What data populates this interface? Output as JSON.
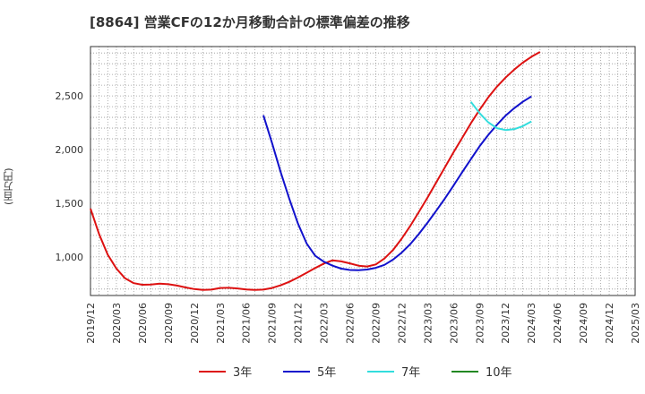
{
  "chart_data": {
    "type": "line",
    "title": "[8864]  営業CFの12か月移動合計の標準偏差の推移",
    "ylabel": "(百万円)",
    "xlabel": "",
    "x_ticks": [
      "2019/12",
      "2020/03",
      "2020/06",
      "2020/09",
      "2020/12",
      "2021/03",
      "2021/06",
      "2021/09",
      "2021/12",
      "2022/03",
      "2022/06",
      "2022/09",
      "2022/12",
      "2023/03",
      "2023/06",
      "2023/09",
      "2023/12",
      "2024/03",
      "2024/06",
      "2024/09",
      "2024/12",
      "2025/03"
    ],
    "y_ticks": [
      "1,000",
      "1,500",
      "2,000",
      "2,500"
    ],
    "y_tick_values": [
      1000,
      1500,
      2000,
      2500
    ],
    "ylim": [
      640,
      2960
    ],
    "grid": true,
    "legend_position": "bottom",
    "series": [
      {
        "name": "3年",
        "color": "#dd1111",
        "points": [
          [
            "2019/12",
            1450
          ],
          [
            "2020/01",
            1210
          ],
          [
            "2020/02",
            1020
          ],
          [
            "2020/03",
            890
          ],
          [
            "2020/04",
            800
          ],
          [
            "2020/05",
            755
          ],
          [
            "2020/06",
            740
          ],
          [
            "2020/07",
            742
          ],
          [
            "2020/08",
            750
          ],
          [
            "2020/09",
            745
          ],
          [
            "2020/10",
            733
          ],
          [
            "2020/11",
            715
          ],
          [
            "2020/12",
            700
          ],
          [
            "2021/01",
            692
          ],
          [
            "2021/02",
            695
          ],
          [
            "2021/03",
            710
          ],
          [
            "2021/04",
            712
          ],
          [
            "2021/05",
            706
          ],
          [
            "2021/06",
            697
          ],
          [
            "2021/07",
            692
          ],
          [
            "2021/08",
            695
          ],
          [
            "2021/09",
            710
          ],
          [
            "2021/10",
            735
          ],
          [
            "2021/11",
            768
          ],
          [
            "2021/12",
            808
          ],
          [
            "2022/01",
            852
          ],
          [
            "2022/02",
            896
          ],
          [
            "2022/03",
            938
          ],
          [
            "2022/04",
            968
          ],
          [
            "2022/05",
            958
          ],
          [
            "2022/06",
            940
          ],
          [
            "2022/07",
            918
          ],
          [
            "2022/08",
            910
          ],
          [
            "2022/09",
            930
          ],
          [
            "2022/10",
            985
          ],
          [
            "2022/11",
            1065
          ],
          [
            "2022/12",
            1170
          ],
          [
            "2023/01",
            1290
          ],
          [
            "2023/02",
            1420
          ],
          [
            "2023/03",
            1555
          ],
          [
            "2023/04",
            1695
          ],
          [
            "2023/05",
            1835
          ],
          [
            "2023/06",
            1975
          ],
          [
            "2023/07",
            2110
          ],
          [
            "2023/08",
            2245
          ],
          [
            "2023/09",
            2370
          ],
          [
            "2023/10",
            2485
          ],
          [
            "2023/11",
            2585
          ],
          [
            "2023/12",
            2670
          ],
          [
            "2024/01",
            2745
          ],
          [
            "2024/02",
            2810
          ],
          [
            "2024/03",
            2865
          ],
          [
            "2024/04",
            2910
          ]
        ]
      },
      {
        "name": "5年",
        "color": "#1111cc",
        "points": [
          [
            "2021/08",
            2320
          ],
          [
            "2021/09",
            2060
          ],
          [
            "2021/10",
            1790
          ],
          [
            "2021/11",
            1540
          ],
          [
            "2021/12",
            1310
          ],
          [
            "2022/01",
            1125
          ],
          [
            "2022/02",
            1010
          ],
          [
            "2022/03",
            955
          ],
          [
            "2022/04",
            918
          ],
          [
            "2022/05",
            890
          ],
          [
            "2022/06",
            878
          ],
          [
            "2022/07",
            876
          ],
          [
            "2022/08",
            882
          ],
          [
            "2022/09",
            898
          ],
          [
            "2022/10",
            925
          ],
          [
            "2022/11",
            975
          ],
          [
            "2022/12",
            1040
          ],
          [
            "2023/01",
            1120
          ],
          [
            "2023/02",
            1215
          ],
          [
            "2023/03",
            1320
          ],
          [
            "2023/04",
            1430
          ],
          [
            "2023/05",
            1545
          ],
          [
            "2023/06",
            1665
          ],
          [
            "2023/07",
            1790
          ],
          [
            "2023/08",
            1910
          ],
          [
            "2023/09",
            2030
          ],
          [
            "2023/10",
            2135
          ],
          [
            "2023/11",
            2230
          ],
          [
            "2023/12",
            2315
          ],
          [
            "2024/01",
            2385
          ],
          [
            "2024/02",
            2445
          ],
          [
            "2024/03",
            2495
          ]
        ]
      },
      {
        "name": "7年",
        "color": "#33dddd",
        "points": [
          [
            "2023/08",
            2445
          ],
          [
            "2023/09",
            2340
          ],
          [
            "2023/10",
            2255
          ],
          [
            "2023/11",
            2200
          ],
          [
            "2023/12",
            2182
          ],
          [
            "2024/01",
            2190
          ],
          [
            "2024/02",
            2218
          ],
          [
            "2024/03",
            2262
          ]
        ]
      },
      {
        "name": "10年",
        "color": "#228822",
        "points": []
      }
    ]
  }
}
